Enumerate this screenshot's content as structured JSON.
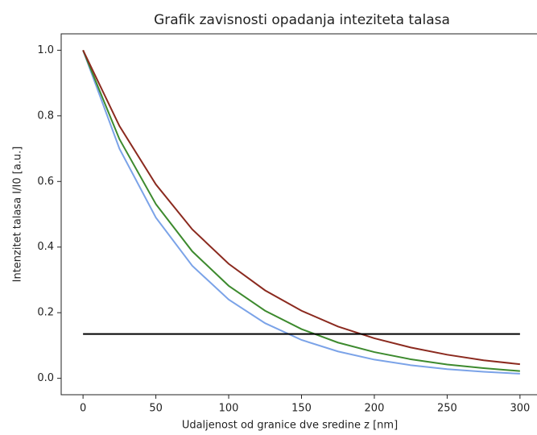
{
  "chart_data": {
    "type": "line",
    "title": "Grafik zavisnosti opadanja inteziteta talasa",
    "x_label": "Udaljenost od granice dve sredine z [nm]",
    "y_label": "Intenzitet talasa I/I0 [a.u.]",
    "xlim": [
      -15,
      315
    ],
    "ylim": [
      -0.05,
      1.05
    ],
    "xticks": [
      0,
      50,
      100,
      150,
      200,
      250,
      300
    ],
    "yticks": [
      {
        "value": 0,
        "label": "0.0"
      },
      0.2,
      0.4,
      0.6,
      0.8,
      {
        "value": 1,
        "label": "1.0"
      }
    ],
    "series": [
      {
        "color": "#7ba3e8",
        "x": [
          0,
          25,
          50,
          75,
          100,
          125,
          150,
          175,
          200,
          225,
          250,
          275,
          300
        ],
        "values": [
          1,
          0.7,
          0.49,
          0.343,
          0.24,
          0.168,
          0.117,
          0.082,
          0.057,
          0.04,
          0.028,
          0.02,
          0.014
        ]
      },
      {
        "color": "#3d8a2e",
        "x": [
          0,
          25,
          50,
          75,
          100,
          125,
          150,
          175,
          200,
          225,
          250,
          275,
          300
        ],
        "values": [
          1,
          0.729,
          0.531,
          0.387,
          0.282,
          0.206,
          0.15,
          0.109,
          0.08,
          0.058,
          0.042,
          0.031,
          0.022
        ]
      },
      {
        "color": "#8b2a1f",
        "x": [
          0,
          25,
          50,
          75,
          100,
          125,
          150,
          175,
          200,
          225,
          250,
          275,
          300
        ],
        "values": [
          1,
          0.769,
          0.591,
          0.454,
          0.349,
          0.268,
          0.206,
          0.158,
          0.122,
          0.094,
          0.072,
          0.055,
          0.043
        ]
      },
      {
        "color": "#000000",
        "x": [
          0,
          300
        ],
        "values": [
          0.135,
          0.135
        ]
      }
    ]
  }
}
